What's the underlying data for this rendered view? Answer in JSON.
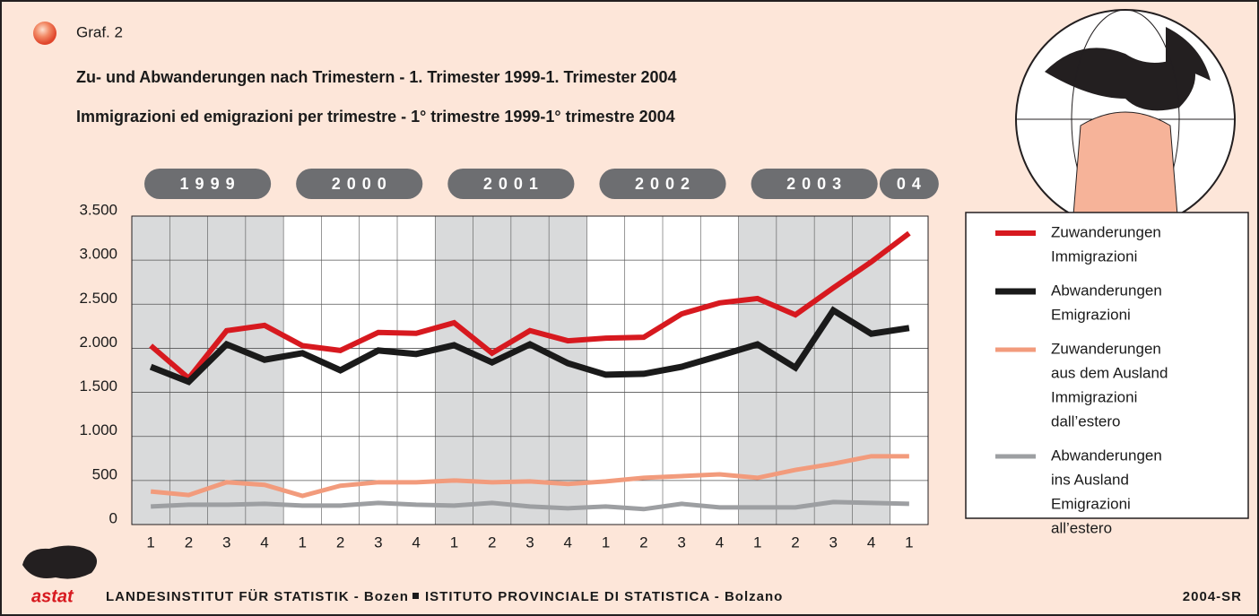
{
  "header": {
    "label": "Graf. 2"
  },
  "chart_data": {
    "type": "line",
    "title": "Zu- und Abwanderungen nach Trimestern - 1. Trimester 1999-1. Trimester 2004",
    "subtitle": "Immigrazioni ed emigrazioni per trimestre - 1° trimestre 1999-1° trimestre 2004",
    "year_labels": [
      "1999",
      "2000",
      "2001",
      "2002",
      "2003",
      "04"
    ],
    "categories": [
      "1",
      "2",
      "3",
      "4",
      "1",
      "2",
      "3",
      "4",
      "1",
      "2",
      "3",
      "4",
      "1",
      "2",
      "3",
      "4",
      "1",
      "2",
      "3",
      "4",
      "1"
    ],
    "series": [
      {
        "name": [
          "Zuwanderungen",
          "Immigrazioni"
        ],
        "color": "#d7191f",
        "values": [
          2030,
          1660,
          2200,
          2260,
          2030,
          1975,
          2180,
          2170,
          2290,
          1945,
          2200,
          2085,
          2115,
          2125,
          2390,
          2515,
          2565,
          2380,
          2685,
          2980,
          3305
        ]
      },
      {
        "name": [
          "Abwanderungen",
          "Emigrazioni"
        ],
        "color": "#1a1a1a",
        "values": [
          1790,
          1620,
          2045,
          1870,
          1945,
          1750,
          1975,
          1935,
          2035,
          1840,
          2045,
          1830,
          1700,
          1710,
          1790,
          1915,
          2045,
          1780,
          2430,
          2165,
          2230
        ]
      },
      {
        "name": [
          "Zuwanderungen",
          "aus dem Ausland",
          "Immigrazioni",
          "dall’estero"
        ],
        "color": "#f29b7c",
        "values": [
          375,
          335,
          480,
          450,
          325,
          440,
          480,
          480,
          500,
          480,
          490,
          460,
          490,
          530,
          550,
          570,
          530,
          620,
          690,
          775,
          775
        ]
      },
      {
        "name": [
          "Abwanderungen",
          "ins Ausland",
          "Emigrazioni",
          "all’estero"
        ],
        "color": "#9d9fa2",
        "values": [
          205,
          225,
          225,
          235,
          215,
          215,
          245,
          225,
          215,
          245,
          205,
          185,
          205,
          175,
          235,
          195,
          195,
          195,
          255,
          245,
          235
        ]
      }
    ],
    "ylim": [
      0,
      3500
    ],
    "yticks": [
      0,
      500,
      {
        "value": 1000,
        "label": "1.000"
      },
      {
        "value": 1500,
        "label": "1.500"
      },
      {
        "value": 2000,
        "label": "2.000"
      },
      {
        "value": 2500,
        "label": "2.500"
      },
      {
        "value": 3000,
        "label": "3.000"
      },
      {
        "value": 3500,
        "label": "3.500"
      }
    ],
    "grid": true
  },
  "footer": {
    "logo": "astat",
    "left": "LANDESINSTITUT FÜR STATISTIK - Bozen",
    "right": "ISTITUTO PROVINCIALE DI STATISTICA - Bolzano",
    "code": "2004-SR"
  }
}
